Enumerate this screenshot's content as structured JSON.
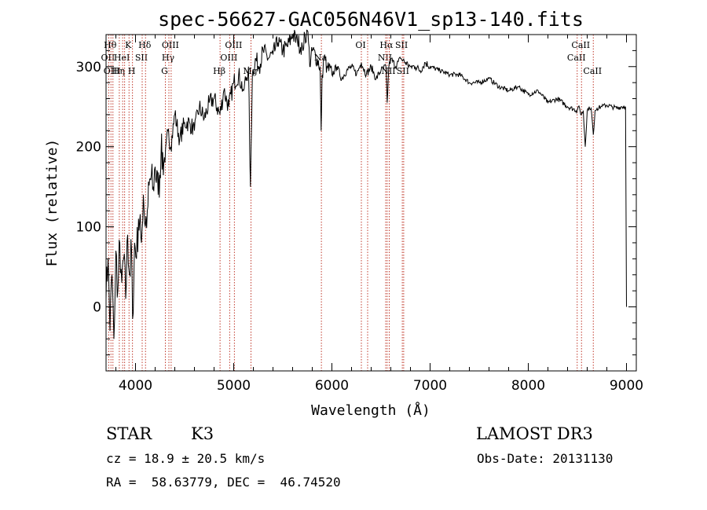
{
  "chart_data": {
    "type": "line",
    "title": "spec-56627-GAC056N46V1_sp13-140.fits",
    "xlabel": "Wavelength (Å)",
    "ylabel": "Flux (relative)",
    "xlim": [
      3700,
      9100
    ],
    "ylim": [
      -80,
      340
    ],
    "xticks": [
      4000,
      5000,
      6000,
      7000,
      8000,
      9000
    ],
    "xtick_labels": [
      "4000",
      "5000",
      "6000",
      "7000",
      "8000",
      "9000"
    ],
    "yticks": [
      0,
      100,
      200,
      300
    ],
    "ytick_labels": [
      "0",
      "100",
      "200",
      "300"
    ],
    "series": [
      {
        "name": "spectrum",
        "x": [
          3700,
          3720,
          3740,
          3760,
          3780,
          3800,
          3820,
          3840,
          3860,
          3880,
          3900,
          3920,
          3940,
          3960,
          3970,
          3990,
          4010,
          4030,
          4060,
          4080,
          4100,
          4120,
          4150,
          4180,
          4200,
          4230,
          4260,
          4300,
          4330,
          4360,
          4400,
          4450,
          4500,
          4550,
          4600,
          4650,
          4700,
          4750,
          4800,
          4860,
          4900,
          4950,
          5000,
          5050,
          5100,
          5150,
          5170,
          5190,
          5220,
          5260,
          5300,
          5350,
          5400,
          5450,
          5500,
          5550,
          5600,
          5650,
          5700,
          5750,
          5780,
          5800,
          5850,
          5880,
          5890,
          5900,
          5920,
          5950,
          6000,
          6050,
          6100,
          6150,
          6200,
          6250,
          6300,
          6350,
          6400,
          6450,
          6500,
          6550,
          6563,
          6580,
          6600,
          6650,
          6700,
          6750,
          6800,
          6850,
          6900,
          6950,
          7000,
          7100,
          7200,
          7300,
          7400,
          7500,
          7600,
          7700,
          7800,
          7900,
          8000,
          8100,
          8200,
          8300,
          8400,
          8498,
          8510,
          8540,
          8560,
          8580,
          8600,
          8620,
          8640,
          8662,
          8680,
          8700,
          8750,
          8800,
          8850,
          8900,
          8950,
          8990,
          9000
        ],
        "y": [
          10,
          60,
          -30,
          40,
          -40,
          70,
          20,
          80,
          30,
          60,
          10,
          90,
          40,
          70,
          -15,
          80,
          60,
          110,
          80,
          140,
          100,
          120,
          160,
          150,
          175,
          140,
          190,
          180,
          220,
          200,
          240,
          210,
          230,
          230,
          220,
          250,
          235,
          255,
          260,
          240,
          270,
          250,
          280,
          290,
          270,
          300,
          150,
          290,
          310,
          300,
          320,
          310,
          315,
          330,
          320,
          325,
          340,
          330,
          325,
          345,
          300,
          320,
          310,
          300,
          220,
          290,
          310,
          300,
          290,
          300,
          285,
          295,
          300,
          290,
          305,
          290,
          300,
          285,
          295,
          300,
          255,
          300,
          310,
          300,
          310,
          305,
          300,
          300,
          295,
          305,
          300,
          295,
          290,
          290,
          280,
          280,
          285,
          275,
          270,
          275,
          265,
          270,
          255,
          260,
          250,
          245,
          250,
          240,
          245,
          200,
          245,
          250,
          248,
          215,
          245,
          248,
          250,
          252,
          250,
          248,
          250,
          250,
          0
        ]
      }
    ],
    "line_markers": [
      {
        "w": 3750,
        "label": "Hθ",
        "row": 0
      },
      {
        "w": 3727,
        "label": "OII",
        "row": 1
      },
      {
        "w": 3770,
        "label": "OIII",
        "row": 2
      },
      {
        "w": 3835,
        "label": "Hη",
        "row": 2
      },
      {
        "w": 3869,
        "label": "HeI",
        "row": 1
      },
      {
        "w": 3889,
        "label": "",
        "row": -1
      },
      {
        "w": 3934,
        "label": "K",
        "row": 0
      },
      {
        "w": 3969,
        "label": "H",
        "row": 2
      },
      {
        "w": 4068,
        "label": "SII",
        "row": 1
      },
      {
        "w": 4102,
        "label": "Hδ",
        "row": 0
      },
      {
        "w": 4304,
        "label": "G",
        "row": 2
      },
      {
        "w": 4340,
        "label": "Hγ",
        "row": 1
      },
      {
        "w": 4363,
        "label": "OIII",
        "row": 0
      },
      {
        "w": 4861,
        "label": "Hβ",
        "row": 2
      },
      {
        "w": 4959,
        "label": "OIII",
        "row": 1
      },
      {
        "w": 5007,
        "label": "OIII",
        "row": 0
      },
      {
        "w": 5176,
        "label": "Mg",
        "row": 2
      },
      {
        "w": 5893,
        "label": "Na",
        "row": 1
      },
      {
        "w": 6300,
        "label": "OI",
        "row": 0
      },
      {
        "w": 6364,
        "label": "",
        "row": -1
      },
      {
        "w": 6548,
        "label": "NII",
        "row": 1
      },
      {
        "w": 6563,
        "label": "Hα",
        "row": 0
      },
      {
        "w": 6584,
        "label": "NII",
        "row": 2
      },
      {
        "w": 6717,
        "label": "SII",
        "row": 0
      },
      {
        "w": 6731,
        "label": "SII",
        "row": 2
      },
      {
        "w": 8498,
        "label": "CaII",
        "row": 1
      },
      {
        "w": 8542,
        "label": "CaII",
        "row": 0
      },
      {
        "w": 8662,
        "label": "CaII",
        "row": 2
      }
    ]
  },
  "info": {
    "object_type": "STAR",
    "subclass": "K3",
    "survey": "LAMOST DR3",
    "cz_line": "cz = 18.9 ± 20.5 km/s",
    "obs_date_line": "Obs-Date: 20131130",
    "radec_line": "RA =  58.63779, DEC =  46.74520"
  },
  "colors": {
    "line": "#000000",
    "marker": "#c0392b",
    "axes": "#000000"
  }
}
